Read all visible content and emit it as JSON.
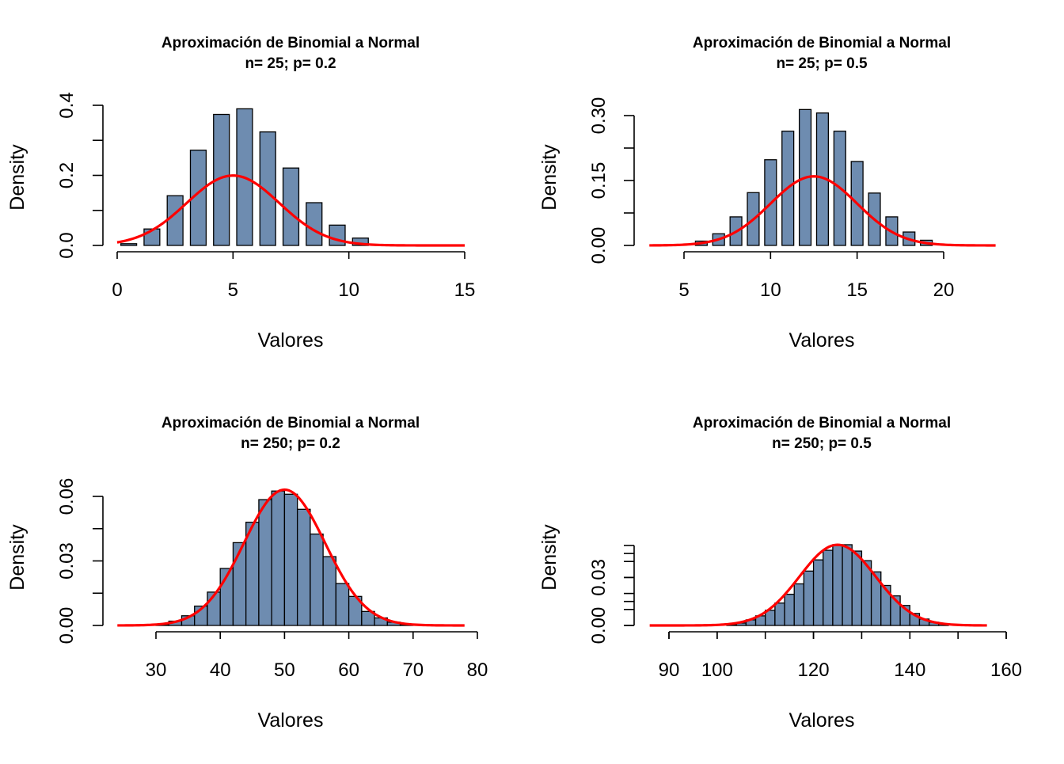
{
  "colors": {
    "bar_fill": "#6e8cb0",
    "bar_stroke": "#000000",
    "curve": "#ff0000"
  },
  "chart_data": [
    {
      "type": "bar",
      "title": "Aproximación de Binomial a Normal",
      "subtitle": "n= 25; p= 0.2",
      "xlabel": "Valores",
      "ylabel": "Density",
      "xlim": [
        0,
        15
      ],
      "ylim": [
        0,
        0.4
      ],
      "x_ticks": [
        "0",
        "5",
        "10",
        "15"
      ],
      "y_ticks": [
        "0.0",
        "0.2",
        "0.4"
      ],
      "bars_x": [
        0.5,
        1.5,
        2.5,
        3.5,
        4.5,
        5.5,
        6.5,
        7.5,
        8.5,
        9.5,
        10.5
      ],
      "bars_value": [
        0.005,
        0.047,
        0.142,
        0.272,
        0.374,
        0.39,
        0.324,
        0.221,
        0.122,
        0.058,
        0.021
      ],
      "normal_curve": {
        "mean": 5,
        "sd": 2
      }
    },
    {
      "type": "bar",
      "title": "Aproximación de Binomial a Normal",
      "subtitle": "n= 25; p= 0.5",
      "xlabel": "Valores",
      "ylabel": "Density",
      "xlim": [
        5,
        20
      ],
      "ylim": [
        0,
        0.3
      ],
      "x_ticks": [
        "5",
        "10",
        "15",
        "20"
      ],
      "y_ticks": [
        "0.00",
        "0.15",
        "0.30"
      ],
      "bars_x": [
        6,
        7,
        8,
        9,
        10,
        11,
        12,
        13,
        14,
        15,
        16,
        17,
        18,
        19
      ],
      "bars_value": [
        0.01,
        0.027,
        0.066,
        0.122,
        0.198,
        0.264,
        0.314,
        0.306,
        0.264,
        0.194,
        0.121,
        0.066,
        0.031,
        0.012
      ],
      "normal_curve": {
        "mean": 12.5,
        "sd": 2.5
      }
    },
    {
      "type": "bar",
      "title": "Aproximación de Binomial a Normal",
      "subtitle": "n= 250; p= 0.2",
      "xlabel": "Valores",
      "ylabel": "Density",
      "xlim": [
        30,
        80
      ],
      "ylim": [
        0,
        0.06
      ],
      "x_ticks": [
        "30",
        "40",
        "50",
        "60",
        "70",
        "80"
      ],
      "y_ticks": [
        "0.00",
        "0.03",
        "0.06"
      ],
      "bars_x": [
        31,
        33,
        35,
        37,
        39,
        41,
        43,
        45,
        47,
        49,
        51,
        53,
        55,
        57,
        59,
        61,
        63,
        65,
        67,
        69
      ],
      "bars_value": [
        0.0005,
        0.002,
        0.0045,
        0.009,
        0.0155,
        0.0265,
        0.0385,
        0.048,
        0.0585,
        0.0625,
        0.061,
        0.054,
        0.0425,
        0.032,
        0.0195,
        0.0135,
        0.0065,
        0.0035,
        0.0015,
        0.0005
      ],
      "normal_curve": {
        "mean": 50,
        "sd": 6.32
      }
    },
    {
      "type": "bar",
      "title": "Aproximación de Binomial a Normal",
      "subtitle": "n= 250; p= 0.5",
      "xlabel": "Valores",
      "ylabel": "Density",
      "xlim": [
        90,
        160
      ],
      "ylim": [
        0,
        0.05
      ],
      "x_ticks": [
        "90",
        "100",
        "120",
        "140",
        "160"
      ],
      "y_ticks": [
        "0.00",
        "0.03"
      ],
      "bars_x": [
        103,
        105,
        107,
        109,
        111,
        113,
        115,
        117,
        119,
        121,
        123,
        125,
        127,
        129,
        131,
        133,
        135,
        137,
        139,
        141,
        143,
        145,
        147
      ],
      "bars_value": [
        0.0005,
        0.0015,
        0.0035,
        0.006,
        0.0095,
        0.014,
        0.0195,
        0.026,
        0.034,
        0.041,
        0.047,
        0.0505,
        0.0505,
        0.0465,
        0.0405,
        0.0335,
        0.025,
        0.0185,
        0.0125,
        0.0075,
        0.004,
        0.002,
        0.001
      ],
      "normal_curve": {
        "mean": 125,
        "sd": 7.91
      }
    }
  ]
}
